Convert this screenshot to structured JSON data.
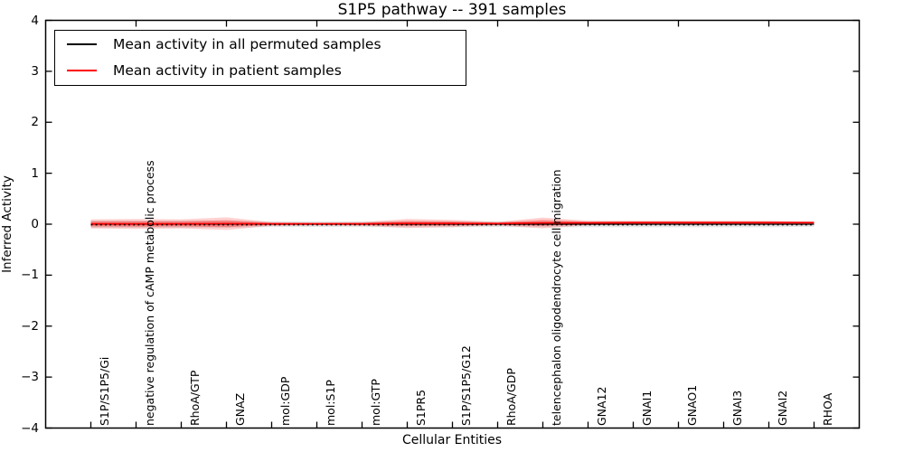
{
  "chart_data": {
    "type": "line",
    "title": "S1P5 pathway -- 391 samples",
    "xlabel": "Cellular Entities",
    "ylabel": "Inferred Activity",
    "ylim": [
      -4,
      4
    ],
    "xlim": [
      -1,
      17
    ],
    "yticks": [
      4,
      3,
      2,
      1,
      0,
      -1,
      -2,
      -3,
      -4
    ],
    "grid": false,
    "legend_position": "upper left",
    "categories": [
      "S1P/S1P5/Gi",
      "negative regulation of cAMP metabolic process",
      "RhoA/GTP",
      "GNAZ",
      "mol:GDP",
      "mol:S1P",
      "mol:GTP",
      "S1PR5",
      "S1P/S1P5/G12",
      "RhoA/GDP",
      "telencephalon oligodendrocyte cell migration",
      "GNA12",
      "GNAI1",
      "GNAO1",
      "GNAI3",
      "GNAI2",
      "RHOA"
    ],
    "series": [
      {
        "name": "Mean activity in all permuted samples",
        "color": "#000000",
        "linestyle": "solid",
        "values": [
          0,
          0,
          0,
          0,
          0,
          0,
          0,
          0,
          0,
          0,
          0,
          0,
          0,
          0,
          0,
          0,
          0
        ]
      },
      {
        "name": "Mean activity in patient samples",
        "color": "#ff0000",
        "linestyle": "solid",
        "values": [
          0.005,
          0.005,
          0.005,
          0.01,
          0.005,
          0.005,
          0.005,
          0.015,
          0.015,
          0.01,
          0.025,
          0.025,
          0.03,
          0.03,
          0.03,
          0.03,
          0.03
        ]
      }
    ],
    "zero_line": {
      "color": "#000000",
      "linestyle": "dotted",
      "value": 0
    },
    "bands": [
      {
        "name": "permuted-std-band",
        "color": "#000000",
        "alpha": 0.1,
        "center_series": 0,
        "half_widths": [
          0.07,
          0.07,
          0.07,
          0.07,
          0.055,
          0.055,
          0.055,
          0.06,
          0.06,
          0.055,
          0.06,
          0.06,
          0.06,
          0.06,
          0.06,
          0.06,
          0.05
        ]
      },
      {
        "name": "patient-std-outer-band",
        "color": "#ff0000",
        "alpha": 0.18,
        "center_series": 1,
        "half_widths": [
          0.09,
          0.098,
          0.09,
          0.124,
          0.035,
          0.027,
          0.035,
          0.089,
          0.071,
          0.035,
          0.106,
          0.044,
          0.035,
          0.035,
          0.035,
          0.035,
          0.018
        ]
      },
      {
        "name": "patient-std-inner-band",
        "color": "#ff0000",
        "alpha": 0.3,
        "center_series": 1,
        "half_widths": [
          0.05,
          0.054,
          0.05,
          0.068,
          0.019,
          0.015,
          0.019,
          0.049,
          0.039,
          0.019,
          0.058,
          0.024,
          0.019,
          0.019,
          0.019,
          0.019,
          0.01
        ]
      }
    ],
    "top_tick_category_indices": [
      1,
      3,
      5,
      7,
      9,
      11,
      13,
      15
    ]
  }
}
